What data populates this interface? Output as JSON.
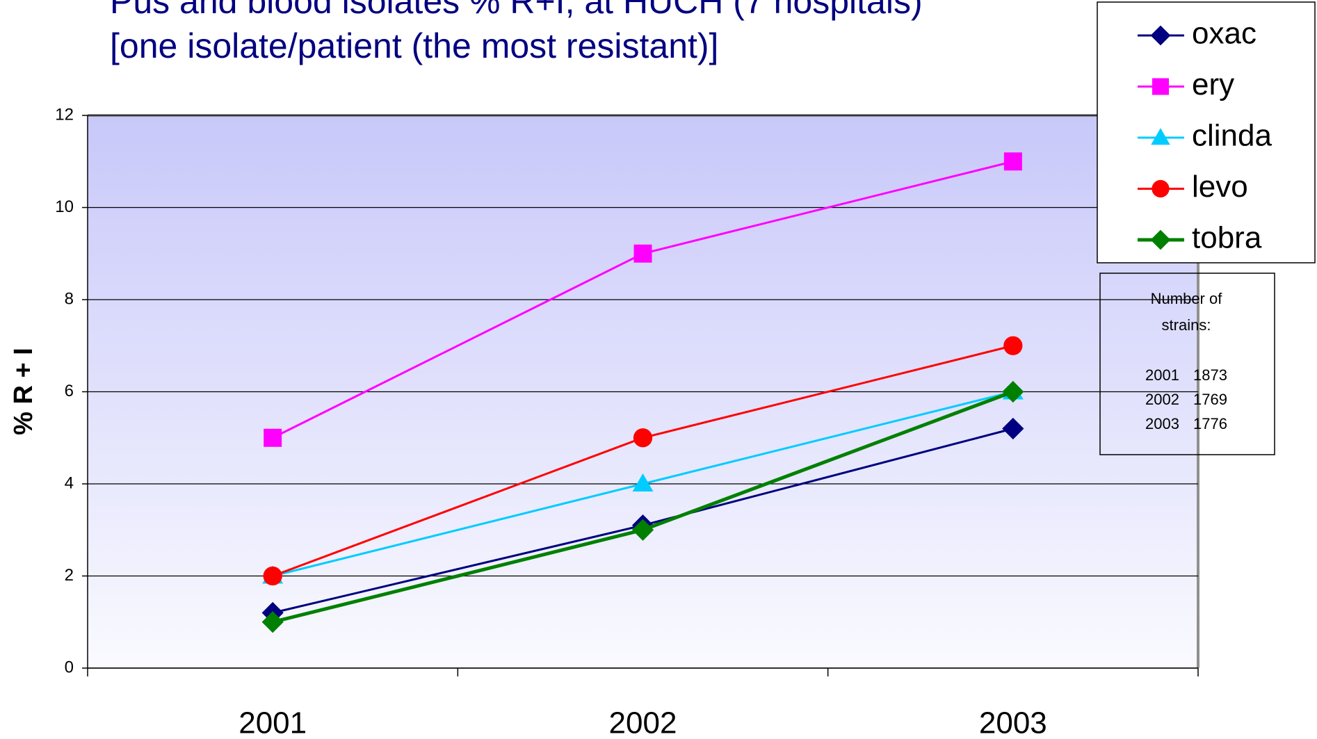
{
  "chart_data": {
    "type": "line",
    "title": [
      "Pus and blood isolates % R+I, at HUCH (7 hospitals)",
      "[one isolate/patient (the most resistant)]"
    ],
    "y_label": "% R + I",
    "categories": [
      "2001",
      "2002",
      "2003"
    ],
    "series": [
      {
        "name": "oxac",
        "color": "#000080",
        "marker": "diamond",
        "values": [
          1.2,
          3.1,
          5.2
        ]
      },
      {
        "name": "ery",
        "color": "#ff00ff",
        "marker": "square",
        "values": [
          5,
          9,
          11
        ]
      },
      {
        "name": "clinda",
        "color": "#00ccff",
        "marker": "triangle",
        "values": [
          2,
          4,
          6
        ]
      },
      {
        "name": "levo",
        "color": "#ff0000",
        "marker": "circle",
        "values": [
          2,
          5,
          7
        ]
      },
      {
        "name": "tobra",
        "color": "#008000",
        "marker": "diamond",
        "values": [
          1,
          3,
          6
        ]
      }
    ],
    "ylim": [
      0,
      12
    ],
    "yticks": [
      0,
      2,
      4,
      6,
      8,
      10,
      12
    ],
    "grid": true,
    "legend": "top-right",
    "note": {
      "title": [
        "Number of",
        "strains:"
      ],
      "rows": [
        [
          "2001",
          "1873"
        ],
        [
          "2002",
          "1769"
        ],
        [
          "2003",
          "1776"
        ]
      ]
    }
  }
}
